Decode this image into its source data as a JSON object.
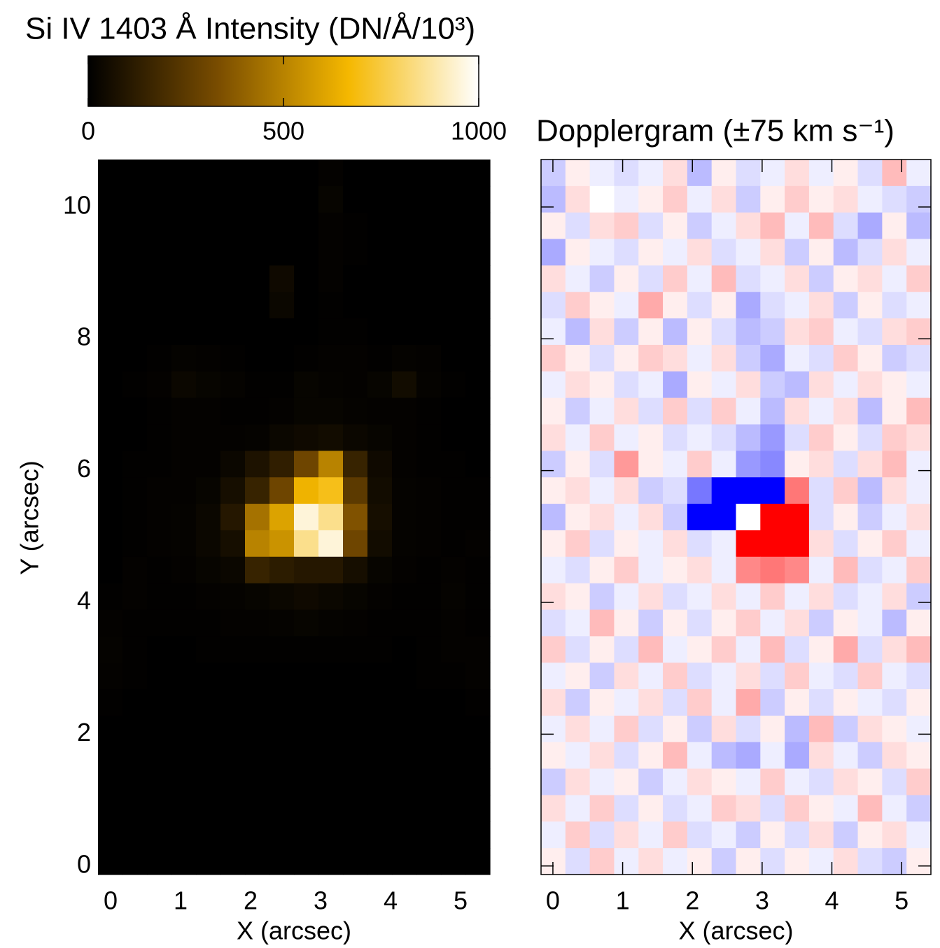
{
  "chart_data": [
    {
      "type": "heatmap",
      "title": "Si IV 1403 Å Intensity (DN/Å/10³)",
      "xlabel": "X (arcsec)",
      "ylabel": "Y (arcsec)",
      "xlim": [
        -0.18,
        5.42
      ],
      "ylim": [
        -0.13,
        10.72
      ],
      "xticks": [
        0,
        1,
        2,
        3,
        4,
        5
      ],
      "yticks": [
        0,
        2,
        4,
        6,
        8,
        10
      ],
      "zlim": [
        0,
        1000
      ],
      "colorbar_ticks": [
        0,
        500,
        1000
      ],
      "colormap": [
        "#000000",
        "#7a4d00",
        "#f5b800",
        "#ffffff"
      ],
      "z": [
        [
          0,
          0,
          0,
          0,
          0,
          0,
          0,
          0,
          0,
          10,
          0,
          0,
          0,
          0,
          0,
          0
        ],
        [
          0,
          0,
          0,
          0,
          0,
          0,
          0,
          0,
          0,
          20,
          0,
          0,
          0,
          0,
          0,
          0
        ],
        [
          0,
          0,
          0,
          0,
          0,
          0,
          0,
          0,
          0,
          10,
          5,
          0,
          0,
          0,
          0,
          0
        ],
        [
          0,
          0,
          0,
          0,
          0,
          0,
          0,
          0,
          0,
          10,
          5,
          0,
          0,
          0,
          0,
          0
        ],
        [
          0,
          0,
          0,
          0,
          0,
          0,
          0,
          40,
          0,
          10,
          0,
          0,
          0,
          0,
          0,
          0
        ],
        [
          0,
          0,
          0,
          0,
          0,
          0,
          0,
          30,
          0,
          5,
          0,
          0,
          0,
          0,
          0,
          0
        ],
        [
          0,
          0,
          0,
          0,
          0,
          0,
          0,
          0,
          0,
          5,
          5,
          0,
          0,
          0,
          0,
          0
        ],
        [
          0,
          0,
          5,
          15,
          10,
          5,
          0,
          0,
          5,
          10,
          10,
          5,
          15,
          10,
          0,
          0
        ],
        [
          0,
          5,
          10,
          30,
          20,
          15,
          5,
          5,
          20,
          15,
          10,
          20,
          50,
          15,
          5,
          0
        ],
        [
          0,
          0,
          5,
          10,
          10,
          5,
          5,
          10,
          20,
          20,
          15,
          10,
          10,
          5,
          0,
          0
        ],
        [
          0,
          0,
          5,
          10,
          10,
          10,
          15,
          30,
          40,
          50,
          30,
          20,
          10,
          5,
          0,
          0
        ],
        [
          0,
          5,
          5,
          10,
          10,
          30,
          80,
          130,
          300,
          500,
          150,
          40,
          10,
          5,
          5,
          0
        ],
        [
          0,
          5,
          10,
          10,
          20,
          60,
          150,
          300,
          650,
          700,
          250,
          50,
          15,
          10,
          5,
          5
        ],
        [
          0,
          5,
          10,
          15,
          30,
          100,
          450,
          600,
          950,
          850,
          350,
          60,
          15,
          10,
          5,
          5
        ],
        [
          0,
          5,
          10,
          15,
          30,
          60,
          500,
          550,
          850,
          950,
          300,
          50,
          15,
          10,
          5,
          10
        ],
        [
          0,
          10,
          5,
          10,
          20,
          30,
          150,
          120,
          100,
          100,
          60,
          20,
          10,
          5,
          10,
          5
        ],
        [
          5,
          10,
          5,
          5,
          10,
          15,
          20,
          30,
          40,
          30,
          20,
          10,
          5,
          5,
          15,
          5
        ],
        [
          10,
          5,
          5,
          5,
          5,
          10,
          10,
          15,
          20,
          15,
          10,
          5,
          5,
          5,
          10,
          5
        ],
        [
          15,
          5,
          0,
          0,
          5,
          5,
          5,
          5,
          5,
          5,
          5,
          5,
          0,
          5,
          10,
          10
        ],
        [
          10,
          5,
          0,
          0,
          0,
          0,
          0,
          0,
          0,
          0,
          0,
          0,
          0,
          5,
          5,
          10
        ],
        [
          5,
          0,
          0,
          0,
          0,
          0,
          0,
          0,
          0,
          0,
          0,
          0,
          0,
          0,
          0,
          5
        ],
        [
          0,
          0,
          0,
          0,
          0,
          0,
          0,
          0,
          0,
          0,
          0,
          0,
          0,
          0,
          0,
          0
        ],
        [
          0,
          0,
          0,
          0,
          0,
          0,
          0,
          0,
          0,
          0,
          0,
          0,
          0,
          0,
          0,
          0
        ],
        [
          0,
          0,
          0,
          0,
          0,
          0,
          0,
          0,
          0,
          0,
          0,
          0,
          0,
          0,
          0,
          0
        ],
        [
          0,
          0,
          0,
          0,
          0,
          0,
          0,
          0,
          0,
          0,
          0,
          0,
          0,
          0,
          0,
          0
        ],
        [
          0,
          0,
          0,
          0,
          0,
          0,
          0,
          0,
          0,
          0,
          0,
          0,
          0,
          0,
          0,
          0
        ],
        [
          0,
          0,
          0,
          0,
          0,
          0,
          0,
          0,
          0,
          0,
          0,
          0,
          0,
          0,
          0,
          0
        ]
      ]
    },
    {
      "type": "heatmap",
      "title": "Dopplergram (±75 km s⁻¹)",
      "xlabel": "X (arcsec)",
      "xlim": [
        -0.17,
        5.42
      ],
      "ylim": [
        -0.13,
        10.72
      ],
      "xticks": [
        0,
        1,
        2,
        3,
        4,
        5
      ],
      "yticks": [
        0,
        2,
        4,
        6,
        8,
        10
      ],
      "show_ytick_labels": false,
      "zlim": [
        -75,
        75
      ],
      "colormap": [
        "#0000ff",
        "#ffffff",
        "#ff0000"
      ],
      "z": [
        [
          -15,
          5,
          -5,
          -10,
          -5,
          10,
          -20,
          5,
          -10,
          -5,
          10,
          -5,
          5,
          -10,
          20,
          -5
        ],
        [
          -20,
          10,
          0,
          -5,
          5,
          15,
          -5,
          10,
          -15,
          5,
          15,
          5,
          10,
          -5,
          -10,
          -15
        ],
        [
          5,
          -10,
          10,
          15,
          -10,
          5,
          -15,
          -5,
          10,
          20,
          -5,
          20,
          -10,
          -25,
          5,
          -20
        ],
        [
          -25,
          5,
          -5,
          -10,
          5,
          -5,
          10,
          -10,
          -5,
          10,
          -15,
          5,
          -20,
          -10,
          10,
          -5
        ],
        [
          10,
          -5,
          -15,
          5,
          -10,
          15,
          -5,
          20,
          -10,
          -5,
          10,
          -15,
          5,
          10,
          -5,
          15
        ],
        [
          -10,
          15,
          5,
          -5,
          25,
          5,
          -10,
          5,
          -25,
          -10,
          -5,
          10,
          -15,
          5,
          -10,
          -5
        ],
        [
          -5,
          -20,
          10,
          -15,
          5,
          -20,
          5,
          -10,
          -20,
          -15,
          10,
          15,
          -5,
          -10,
          10,
          15
        ],
        [
          15,
          5,
          -10,
          5,
          15,
          10,
          -5,
          10,
          -15,
          -25,
          -5,
          -10,
          15,
          5,
          -15,
          -10
        ],
        [
          -5,
          10,
          5,
          -10,
          -5,
          -25,
          5,
          -5,
          10,
          -15,
          -20,
          10,
          -5,
          10,
          5,
          -5
        ],
        [
          5,
          -15,
          -5,
          10,
          -10,
          15,
          -10,
          15,
          -5,
          -20,
          10,
          -5,
          10,
          -20,
          5,
          20
        ],
        [
          10,
          -5,
          15,
          -5,
          5,
          -10,
          -5,
          -10,
          -20,
          -30,
          -10,
          15,
          5,
          -10,
          15,
          10
        ],
        [
          -15,
          5,
          -10,
          30,
          5,
          -5,
          15,
          -5,
          -30,
          -35,
          5,
          10,
          -10,
          10,
          20,
          -5
        ],
        [
          5,
          10,
          -5,
          10,
          -15,
          -10,
          -40,
          -75,
          -75,
          -75,
          40,
          -10,
          15,
          -20,
          10,
          -5
        ],
        [
          -20,
          5,
          10,
          -5,
          10,
          -15,
          -75,
          -75,
          0,
          75,
          75,
          -10,
          5,
          -15,
          -5,
          10
        ],
        [
          5,
          15,
          -10,
          5,
          -5,
          10,
          -10,
          -5,
          75,
          75,
          75,
          10,
          -10,
          5,
          15,
          -5
        ],
        [
          -5,
          -10,
          5,
          15,
          -5,
          5,
          10,
          -5,
          35,
          40,
          35,
          -5,
          20,
          -10,
          -5,
          15
        ],
        [
          10,
          5,
          -15,
          -5,
          10,
          -10,
          -5,
          10,
          -5,
          15,
          -5,
          10,
          -10,
          -5,
          10,
          -15
        ],
        [
          -10,
          -5,
          20,
          5,
          -15,
          5,
          -10,
          5,
          15,
          -5,
          10,
          -15,
          5,
          -5,
          -20,
          5
        ],
        [
          15,
          -10,
          5,
          -10,
          20,
          -5,
          5,
          15,
          -5,
          20,
          -10,
          5,
          25,
          -10,
          10,
          20
        ],
        [
          -5,
          5,
          -15,
          10,
          -5,
          15,
          -10,
          -5,
          10,
          -10,
          15,
          -5,
          -10,
          15,
          -5,
          -10
        ],
        [
          10,
          -15,
          5,
          -5,
          10,
          -10,
          15,
          -5,
          25,
          -15,
          5,
          -10,
          5,
          -5,
          -10,
          5
        ],
        [
          -5,
          10,
          -5,
          15,
          -10,
          5,
          -15,
          10,
          -10,
          5,
          -20,
          20,
          -15,
          10,
          5,
          -5
        ],
        [
          5,
          -5,
          10,
          -10,
          5,
          20,
          -5,
          -20,
          -25,
          -5,
          -25,
          10,
          -5,
          -15,
          10,
          5
        ],
        [
          -15,
          10,
          -5,
          5,
          -15,
          -5,
          10,
          5,
          -5,
          15,
          -5,
          -10,
          10,
          5,
          -10,
          15
        ],
        [
          10,
          -5,
          15,
          -10,
          5,
          -10,
          -5,
          15,
          10,
          -10,
          15,
          5,
          -5,
          20,
          -5,
          -15
        ],
        [
          -5,
          15,
          -10,
          10,
          -5,
          15,
          -10,
          -5,
          -15,
          5,
          -10,
          10,
          -15,
          5,
          10,
          -5
        ],
        [
          5,
          -10,
          15,
          -5,
          10,
          -5,
          5,
          -15,
          5,
          -10,
          5,
          -5,
          10,
          -10,
          -15,
          5
        ]
      ]
    }
  ]
}
